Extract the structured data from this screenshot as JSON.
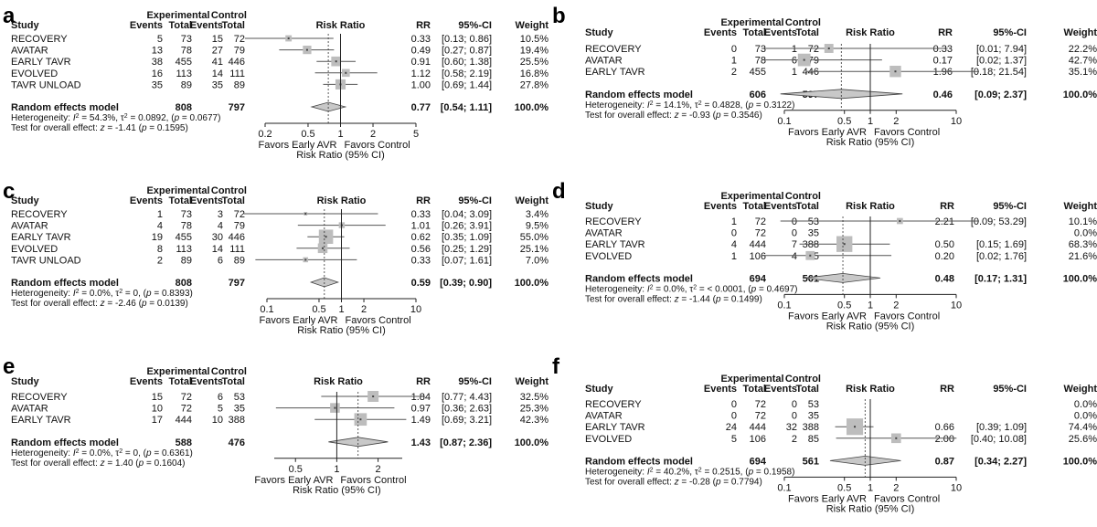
{
  "figure": {
    "chart_data": [
      {
        "type": "forest",
        "panel_letter": "a",
        "headers": {
          "study": "Study",
          "experimental": "Experimental",
          "control": "Control",
          "events": "Events",
          "total": "Total",
          "risk_ratio": "Risk Ratio",
          "rr": "RR",
          "ci": "95%-CI",
          "weight": "Weight"
        },
        "studies": [
          {
            "name": "RECOVERY",
            "e_events": "5",
            "e_total": "73",
            "c_events": "15",
            "c_total": "72",
            "rr": 0.33,
            "lo": 0.13,
            "hi": 0.86,
            "rr_text": "0.33",
            "ci_text": "[0.13; 0.86]",
            "weight_text": "10.5%"
          },
          {
            "name": "AVATAR",
            "e_events": "13",
            "e_total": "78",
            "c_events": "27",
            "c_total": "79",
            "rr": 0.49,
            "lo": 0.27,
            "hi": 0.87,
            "rr_text": "0.49",
            "ci_text": "[0.27; 0.87]",
            "weight_text": "19.4%"
          },
          {
            "name": "EARLY TAVR",
            "e_events": "38",
            "e_total": "455",
            "c_events": "41",
            "c_total": "446",
            "rr": 0.91,
            "lo": 0.6,
            "hi": 1.38,
            "rr_text": "0.91",
            "ci_text": "[0.60; 1.38]",
            "weight_text": "25.5%"
          },
          {
            "name": "EVOLVED",
            "e_events": "16",
            "e_total": "113",
            "c_events": "14",
            "c_total": "111",
            "rr": 1.12,
            "lo": 0.58,
            "hi": 2.19,
            "rr_text": "1.12",
            "ci_text": "[0.58; 2.19]",
            "weight_text": "16.8%"
          },
          {
            "name": "TAVR UNLOAD",
            "e_events": "35",
            "e_total": "89",
            "c_events": "35",
            "c_total": "89",
            "rr": 1.0,
            "lo": 0.69,
            "hi": 1.44,
            "rr_text": "1.00",
            "ci_text": "[0.69; 1.44]",
            "weight_text": "27.8%"
          }
        ],
        "summary": {
          "label": "Random effects model",
          "e_total": "808",
          "c_total": "797",
          "rr": 0.77,
          "lo": 0.54,
          "hi": 1.11,
          "rr_text": "0.77",
          "ci_text": "[0.54; 1.11]",
          "weight_text": "100.0%"
        },
        "heterogeneity": {
          "i2": "54.3%",
          "tau2": "0.0892",
          "p": "0.0677"
        },
        "overall_test": {
          "z": "-1.41",
          "p": "0.1595"
        },
        "xaxis": {
          "ticks": [
            0.2,
            0.5,
            1,
            2,
            5
          ],
          "tick_labels": [
            "0.2",
            "0.5",
            "1",
            "2",
            "5"
          ],
          "xlim": [
            0.2,
            5
          ],
          "scale": "log"
        },
        "favors_left": "Favors Early AVR",
        "favors_right": "Favors Control",
        "xlabel": "Risk Ratio (95% CI)"
      },
      {
        "type": "forest",
        "panel_letter": "b",
        "headers": {
          "study": "Study",
          "experimental": "Experimental",
          "control": "Control",
          "events": "Events",
          "total": "Total",
          "risk_ratio": "Risk Ratio",
          "rr": "RR",
          "ci": "95%-CI",
          "weight": "Weight"
        },
        "studies": [
          {
            "name": "RECOVERY",
            "e_events": "0",
            "e_total": "73",
            "c_events": "1",
            "c_total": "72",
            "rr": 0.33,
            "lo": 0.01,
            "hi": 7.94,
            "rr_text": "0.33",
            "ci_text": "[0.01; 7.94]",
            "weight_text": "22.2%"
          },
          {
            "name": "AVATAR",
            "e_events": "1",
            "e_total": "78",
            "c_events": "6",
            "c_total": "79",
            "rr": 0.17,
            "lo": 0.02,
            "hi": 1.37,
            "rr_text": "0.17",
            "ci_text": "[0.02; 1.37]",
            "weight_text": "42.7%"
          },
          {
            "name": "EARLY TAVR",
            "e_events": "2",
            "e_total": "455",
            "c_events": "1",
            "c_total": "446",
            "rr": 1.96,
            "lo": 0.18,
            "hi": 21.54,
            "rr_text": "1.96",
            "ci_text": "[0.18; 21.54]",
            "weight_text": "35.1%"
          }
        ],
        "summary": {
          "label": "Random effects model",
          "e_total": "606",
          "c_total": "597",
          "rr": 0.46,
          "lo": 0.09,
          "hi": 2.37,
          "rr_text": "0.46",
          "ci_text": "[0.09; 2.37]",
          "weight_text": "100.0%"
        },
        "heterogeneity": {
          "i2": "14.1%",
          "tau2": "0.4828",
          "p": "0.3122"
        },
        "overall_test": {
          "z": "-0.93",
          "p": "0.3546"
        },
        "xaxis": {
          "ticks": [
            0.1,
            0.5,
            1,
            2,
            10
          ],
          "tick_labels": [
            "0.1",
            "0.5",
            "1",
            "2",
            "10"
          ],
          "xlim": [
            0.1,
            10
          ],
          "scale": "log"
        },
        "favors_left": "Favors Early AVR",
        "favors_right": "Favors Control",
        "xlabel": "Risk Ratio (95% CI)"
      },
      {
        "type": "forest",
        "panel_letter": "c",
        "headers": {
          "study": "Study",
          "experimental": "Experimental",
          "control": "Control",
          "events": "Events",
          "total": "Total",
          "risk_ratio": "Risk Ratio",
          "rr": "RR",
          "ci": "95%-CI",
          "weight": "Weight"
        },
        "studies": [
          {
            "name": "RECOVERY",
            "e_events": "1",
            "e_total": "73",
            "c_events": "3",
            "c_total": "72",
            "rr": 0.33,
            "lo": 0.04,
            "hi": 3.09,
            "rr_text": "0.33",
            "ci_text": "[0.04; 3.09]",
            "weight_text": "3.4%"
          },
          {
            "name": "AVATAR",
            "e_events": "4",
            "e_total": "78",
            "c_events": "4",
            "c_total": "79",
            "rr": 1.01,
            "lo": 0.26,
            "hi": 3.91,
            "rr_text": "1.01",
            "ci_text": "[0.26; 3.91]",
            "weight_text": "9.5%"
          },
          {
            "name": "EARLY TAVR",
            "e_events": "19",
            "e_total": "455",
            "c_events": "30",
            "c_total": "446",
            "rr": 0.62,
            "lo": 0.35,
            "hi": 1.09,
            "rr_text": "0.62",
            "ci_text": "[0.35; 1.09]",
            "weight_text": "55.0%"
          },
          {
            "name": "EVOLVED",
            "e_events": "8",
            "e_total": "113",
            "c_events": "14",
            "c_total": "111",
            "rr": 0.56,
            "lo": 0.25,
            "hi": 1.29,
            "rr_text": "0.56",
            "ci_text": "[0.25; 1.29]",
            "weight_text": "25.1%"
          },
          {
            "name": "TAVR UNLOAD",
            "e_events": "2",
            "e_total": "89",
            "c_events": "6",
            "c_total": "89",
            "rr": 0.33,
            "lo": 0.07,
            "hi": 1.61,
            "rr_text": "0.33",
            "ci_text": "[0.07; 1.61]",
            "weight_text": "7.0%"
          }
        ],
        "summary": {
          "label": "Random effects model",
          "e_total": "808",
          "c_total": "797",
          "rr": 0.59,
          "lo": 0.39,
          "hi": 0.9,
          "rr_text": "0.59",
          "ci_text": "[0.39; 0.90]",
          "weight_text": "100.0%"
        },
        "heterogeneity": {
          "i2": "0.0%",
          "tau2": "0",
          "p": "0.8393"
        },
        "overall_test": {
          "z": "-2.46",
          "p": "0.0139"
        },
        "xaxis": {
          "ticks": [
            0.1,
            0.5,
            1,
            2,
            10
          ],
          "tick_labels": [
            "0.1",
            "0.5",
            "1",
            "2",
            "10"
          ],
          "xlim": [
            0.1,
            10
          ],
          "scale": "log"
        },
        "favors_left": "Favors Early AVR",
        "favors_right": "Favors Control",
        "xlabel": "Risk Ratio (95% CI)"
      },
      {
        "type": "forest",
        "panel_letter": "d",
        "headers": {
          "study": "Study",
          "experimental": "Experimental",
          "control": "Control",
          "events": "Events",
          "total": "Total",
          "risk_ratio": "Risk Ratio",
          "rr": "RR",
          "ci": "95%-CI",
          "weight": "Weight"
        },
        "studies": [
          {
            "name": "RECOVERY",
            "e_events": "1",
            "e_total": "72",
            "c_events": "0",
            "c_total": "53",
            "rr": 2.21,
            "lo": 0.09,
            "hi": 53.29,
            "rr_text": "2.21",
            "ci_text": "[0.09; 53.29]",
            "weight_text": "10.1%"
          },
          {
            "name": "AVATAR",
            "e_events": "0",
            "e_total": "72",
            "c_events": "0",
            "c_total": "35",
            "rr": null,
            "lo": null,
            "hi": null,
            "rr_text": "",
            "ci_text": "",
            "weight_text": "0.0%"
          },
          {
            "name": "EARLY TAVR",
            "e_events": "4",
            "e_total": "444",
            "c_events": "7",
            "c_total": "388",
            "rr": 0.5,
            "lo": 0.15,
            "hi": 1.69,
            "rr_text": "0.50",
            "ci_text": "[0.15; 1.69]",
            "weight_text": "68.3%"
          },
          {
            "name": "EVOLVED",
            "e_events": "1",
            "e_total": "106",
            "c_events": "4",
            "c_total": "85",
            "rr": 0.2,
            "lo": 0.02,
            "hi": 1.76,
            "rr_text": "0.20",
            "ci_text": "[0.02; 1.76]",
            "weight_text": "21.6%"
          }
        ],
        "summary": {
          "label": "Random effects model",
          "e_total": "694",
          "c_total": "561",
          "rr": 0.48,
          "lo": 0.17,
          "hi": 1.31,
          "rr_text": "0.48",
          "ci_text": "[0.17; 1.31]",
          "weight_text": "100.0%"
        },
        "heterogeneity": {
          "i2": "0.0%",
          "tau2": "< 0.0001",
          "p": "0.4697"
        },
        "overall_test": {
          "z": "-1.44",
          "p": "0.1499"
        },
        "xaxis": {
          "ticks": [
            0.1,
            0.5,
            1,
            2,
            10
          ],
          "tick_labels": [
            "0.1",
            "0.5",
            "1",
            "2",
            "10"
          ],
          "xlim": [
            0.1,
            10
          ],
          "scale": "log"
        },
        "favors_left": "Favors Early AVR",
        "favors_right": "Favors Control",
        "xlabel": "Risk Ratio (95% CI)"
      },
      {
        "type": "forest",
        "panel_letter": "e",
        "headers": {
          "study": "Study",
          "experimental": "Experimental",
          "control": "Control",
          "events": "Events",
          "total": "Total",
          "risk_ratio": "Risk Ratio",
          "rr": "RR",
          "ci": "95%-CI",
          "weight": "Weight"
        },
        "studies": [
          {
            "name": "RECOVERY",
            "e_events": "15",
            "e_total": "72",
            "c_events": "6",
            "c_total": "53",
            "rr": 1.84,
            "lo": 0.77,
            "hi": 4.43,
            "rr_text": "1.84",
            "ci_text": "[0.77; 4.43]",
            "weight_text": "32.5%"
          },
          {
            "name": "AVATAR",
            "e_events": "10",
            "e_total": "72",
            "c_events": "5",
            "c_total": "35",
            "rr": 0.97,
            "lo": 0.36,
            "hi": 2.63,
            "rr_text": "0.97",
            "ci_text": "[0.36; 2.63]",
            "weight_text": "25.3%"
          },
          {
            "name": "EARLY TAVR",
            "e_events": "17",
            "e_total": "444",
            "c_events": "10",
            "c_total": "388",
            "rr": 1.49,
            "lo": 0.69,
            "hi": 3.21,
            "rr_text": "1.49",
            "ci_text": "[0.69; 3.21]",
            "weight_text": "42.3%"
          }
        ],
        "summary": {
          "label": "Random effects model",
          "e_total": "588",
          "c_total": "476",
          "rr": 1.43,
          "lo": 0.87,
          "hi": 2.36,
          "rr_text": "1.43",
          "ci_text": "[0.87; 2.36]",
          "weight_text": "100.0%"
        },
        "heterogeneity": {
          "i2": "0.0%",
          "tau2": "0",
          "p": "0.6361"
        },
        "overall_test": {
          "z": "1.40",
          "p": "0.1604"
        },
        "xaxis": {
          "ticks": [
            0.5,
            1,
            2
          ],
          "tick_labels": [
            "0.5",
            "1",
            "2"
          ],
          "xlim": [
            0.35,
            3
          ],
          "scale": "log"
        },
        "favors_left": "Favors Early AVR",
        "favors_right": "Favors Control",
        "xlabel": "Risk Ratio (95% CI)"
      },
      {
        "type": "forest",
        "panel_letter": "f",
        "headers": {
          "study": "Study",
          "experimental": "Experimental",
          "control": "Control",
          "events": "Events",
          "total": "Total",
          "risk_ratio": "Risk Ratio",
          "rr": "RR",
          "ci": "95%-CI",
          "weight": "Weight"
        },
        "studies": [
          {
            "name": "RECOVERY",
            "e_events": "0",
            "e_total": "72",
            "c_events": "0",
            "c_total": "53",
            "rr": null,
            "lo": null,
            "hi": null,
            "rr_text": "",
            "ci_text": "",
            "weight_text": "0.0%"
          },
          {
            "name": "AVATAR",
            "e_events": "0",
            "e_total": "72",
            "c_events": "0",
            "c_total": "35",
            "rr": null,
            "lo": null,
            "hi": null,
            "rr_text": "",
            "ci_text": "",
            "weight_text": "0.0%"
          },
          {
            "name": "EARLY TAVR",
            "e_events": "24",
            "e_total": "444",
            "c_events": "32",
            "c_total": "388",
            "rr": 0.66,
            "lo": 0.39,
            "hi": 1.09,
            "rr_text": "0.66",
            "ci_text": "[0.39; 1.09]",
            "weight_text": "74.4%"
          },
          {
            "name": "EVOLVED",
            "e_events": "5",
            "e_total": "106",
            "c_events": "2",
            "c_total": "85",
            "rr": 2.0,
            "lo": 0.4,
            "hi": 10.08,
            "rr_text": "2.00",
            "ci_text": "[0.40; 10.08]",
            "weight_text": "25.6%"
          }
        ],
        "summary": {
          "label": "Random effects model",
          "e_total": "694",
          "c_total": "561",
          "rr": 0.87,
          "lo": 0.34,
          "hi": 2.27,
          "rr_text": "0.87",
          "ci_text": "[0.34; 2.27]",
          "weight_text": "100.0%"
        },
        "heterogeneity": {
          "i2": "40.2%",
          "tau2": "0.2515",
          "p": "0.1958"
        },
        "overall_test": {
          "z": "-0.28",
          "p": "0.7794"
        },
        "xaxis": {
          "ticks": [
            0.1,
            0.5,
            1,
            2,
            10
          ],
          "tick_labels": [
            "0.1",
            "0.5",
            "1",
            "2",
            "10"
          ],
          "xlim": [
            0.1,
            10
          ],
          "scale": "log"
        },
        "favors_left": "Favors Early AVR",
        "favors_right": "Favors Control",
        "xlabel": "Risk Ratio (95% CI)"
      }
    ]
  }
}
